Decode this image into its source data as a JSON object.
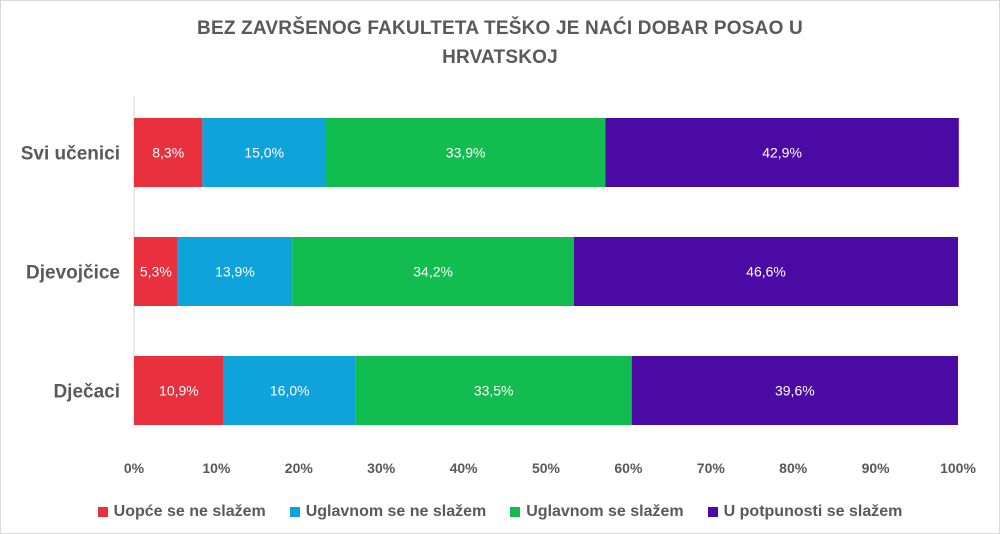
{
  "chart_data": {
    "type": "bar",
    "orientation": "horizontal",
    "stacked": "percent",
    "title": "BEZ ZAVRŠENOG FAKULTETA TEŠKO JE NAĆI DOBAR POSAO U HRVATSKOJ",
    "title_lines": [
      "BEZ ZAVRŠENOG FAKULTETA TEŠKO JE NAĆI DOBAR POSAO U",
      "HRVATSKOJ"
    ],
    "categories": [
      "Svi učenici",
      "Djevojčice",
      "Dječaci"
    ],
    "series": [
      {
        "name": "Uopće se ne slažem",
        "color": "#e8303f",
        "values": [
          8.3,
          5.3,
          10.9
        ],
        "labels": [
          "8,3%",
          "5,3%",
          "10,9%"
        ]
      },
      {
        "name": "Uglavnom se ne slažem",
        "color": "#0fa3dc",
        "values": [
          15.0,
          13.9,
          16.0
        ],
        "labels": [
          "15,0%",
          "13,9%",
          "16,0%"
        ]
      },
      {
        "name": "Uglavnom se slažem",
        "color": "#12bd4f",
        "values": [
          33.9,
          34.2,
          33.5
        ],
        "labels": [
          "33,9%",
          "34,2%",
          "33,5%"
        ]
      },
      {
        "name": "U potpunosti se slažem",
        "color": "#4b0aa3",
        "values": [
          42.9,
          46.6,
          39.6
        ],
        "labels": [
          "42,9%",
          "46,6%",
          "39,6%"
        ]
      }
    ],
    "x_ticks": [
      "0%",
      "10%",
      "20%",
      "30%",
      "40%",
      "50%",
      "60%",
      "70%",
      "80%",
      "90%",
      "100%"
    ],
    "xlim": [
      0,
      100
    ],
    "grid": false,
    "legend_position": "bottom"
  }
}
